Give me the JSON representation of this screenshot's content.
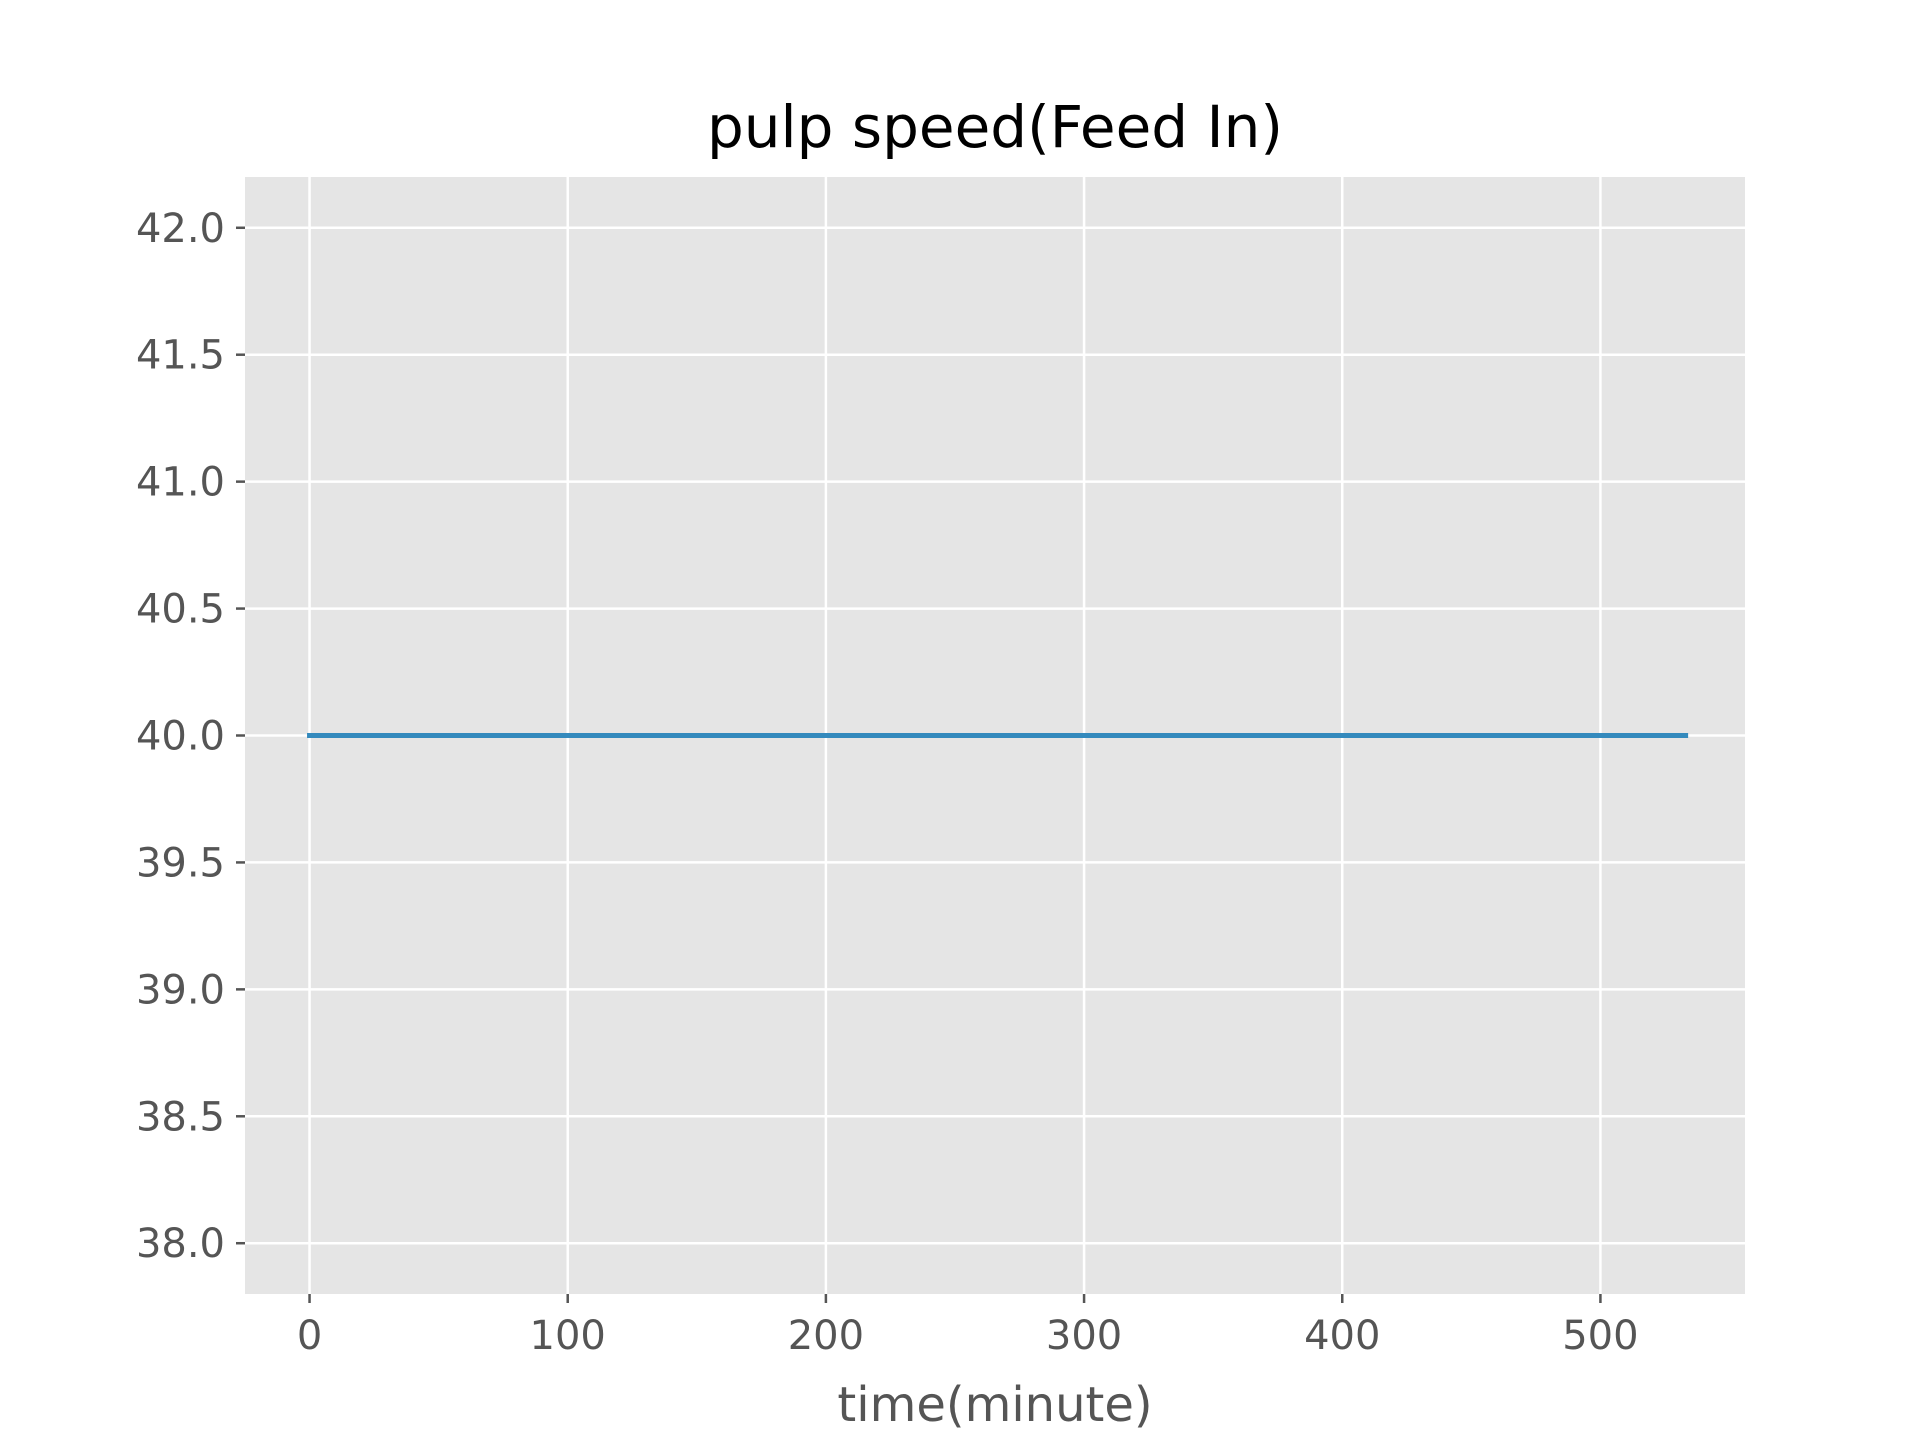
{
  "chart_data": {
    "type": "line",
    "title": "pulp speed(Feed In)",
    "xlabel": "time(minute)",
    "ylabel": "",
    "xlim": [
      -25,
      556
    ],
    "ylim": [
      37.8,
      42.2
    ],
    "xticks": [
      0,
      100,
      200,
      300,
      400,
      500
    ],
    "xtick_labels": [
      "0",
      "100",
      "200",
      "300",
      "400",
      "500"
    ],
    "yticks": [
      38.0,
      38.5,
      39.0,
      39.5,
      40.0,
      40.5,
      41.0,
      41.5,
      42.0
    ],
    "ytick_labels": [
      "38.0",
      "38.5",
      "39.0",
      "39.5",
      "40.0",
      "40.5",
      "41.0",
      "41.5",
      "42.0"
    ],
    "grid": true,
    "colors": {
      "plot_background": "#e5e5e5",
      "grid": "#ffffff",
      "series": "#348abd"
    },
    "series": [
      {
        "x": [
          0,
          100,
          200,
          300,
          400,
          500,
          533
        ],
        "y": [
          40.0,
          40.0,
          40.0,
          40.0,
          40.0,
          40.0,
          40.0
        ]
      }
    ]
  }
}
